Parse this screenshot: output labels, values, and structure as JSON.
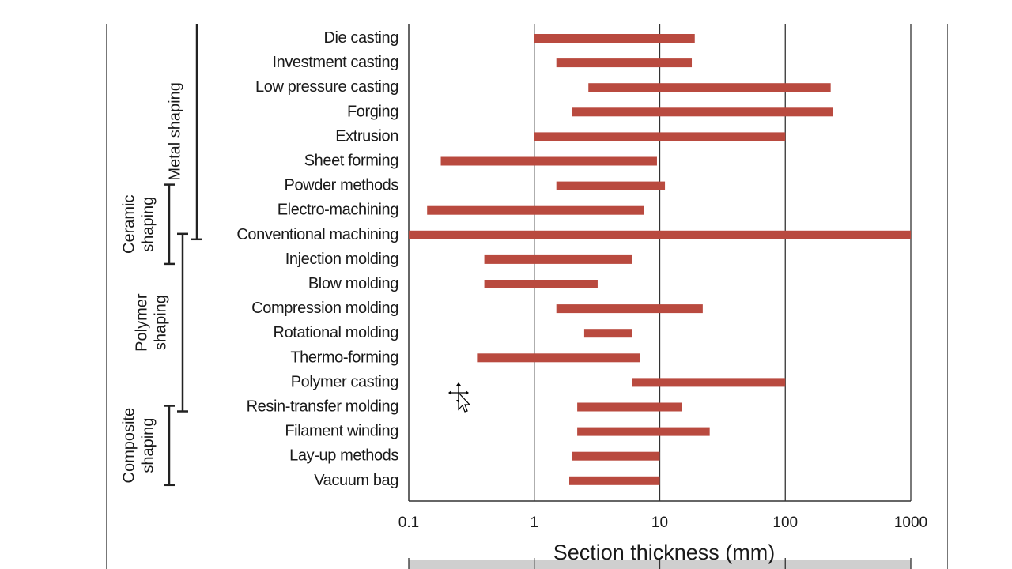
{
  "chart_data": {
    "type": "bar",
    "orientation": "horizontal",
    "style": "range",
    "xscale": "log",
    "xlim": [
      0.1,
      1000
    ],
    "xticks": [
      "0.1",
      "1",
      "10",
      "100",
      "1000"
    ],
    "xlabel": "Section thickness  (mm)",
    "grid": true,
    "bar_color": "#b94a3f",
    "categories": [
      "Die casting",
      "Investment casting",
      "Low pressure casting",
      "Forging",
      "Extrusion",
      "Sheet forming",
      "Powder methods",
      "Electro-machining",
      "Conventional machining",
      "Injection molding",
      "Blow molding",
      "Compression molding",
      "Rotational molding",
      "Thermo-forming",
      "Polymer casting",
      "Resin-transfer molding",
      "Filament winding",
      "Lay-up methods",
      "Vacuum bag"
    ],
    "ranges": [
      [
        1,
        19
      ],
      [
        1.5,
        18
      ],
      [
        2.7,
        230
      ],
      [
        2,
        240
      ],
      [
        1,
        100
      ],
      [
        0.18,
        9.5
      ],
      [
        1.5,
        11
      ],
      [
        0.14,
        7.5
      ],
      [
        0.1,
        1000
      ],
      [
        0.4,
        6
      ],
      [
        0.4,
        3.2
      ],
      [
        1.5,
        22
      ],
      [
        2.5,
        6
      ],
      [
        0.35,
        7
      ],
      [
        6,
        100
      ],
      [
        2.2,
        15
      ],
      [
        2.2,
        25
      ],
      [
        2,
        10
      ],
      [
        1.9,
        10
      ]
    ],
    "groups": [
      {
        "label_lines": [
          "Metal shaping"
        ],
        "from": 0,
        "to": 8
      },
      {
        "label_lines": [
          "Ceramic",
          "shaping"
        ],
        "from": 6,
        "to": 9
      },
      {
        "label_lines": [
          "Polymer",
          "shaping"
        ],
        "from": 8,
        "to": 15
      },
      {
        "label_lines": [
          "Composite",
          "shaping"
        ],
        "from": 15,
        "to": 18
      }
    ]
  },
  "cursor": {
    "icon": "move-cursor-icon"
  }
}
